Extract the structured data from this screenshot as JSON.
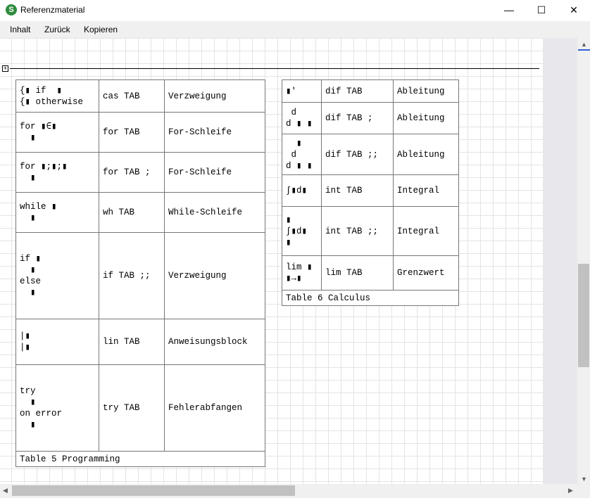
{
  "window": {
    "title": "Referenzmaterial",
    "icon": "app-s-icon",
    "minimize": "—",
    "maximize": "☐",
    "close": "✕"
  },
  "menu": [
    "Inhalt",
    "Zurück",
    "Kopieren"
  ],
  "table5": {
    "caption": "Table 5 Programming",
    "rows": [
      {
        "expr": [
          "{▮ if  ▮",
          "{▮ otherwise"
        ],
        "keys": "cas TAB",
        "desc": "Verzweigung"
      },
      {
        "expr": [
          "for ▮∈▮",
          "  ▮"
        ],
        "keys": "for TAB",
        "desc": "For-Schleife"
      },
      {
        "expr": [
          "for ▮;▮;▮",
          "  ▮"
        ],
        "keys": "for TAB ;",
        "desc": "For-Schleife"
      },
      {
        "expr": [
          "while ▮",
          "  ▮"
        ],
        "keys": "wh TAB",
        "desc": "While-Schleife"
      },
      {
        "expr": [
          "if ▮",
          "  ▮",
          "else",
          "  ▮"
        ],
        "keys": "if TAB ;;",
        "desc": "Verzweigung"
      },
      {
        "expr": [
          "|▮",
          "|▮"
        ],
        "keys": "lin TAB",
        "desc": "Anweisungsblock"
      },
      {
        "expr": [
          "try",
          "  ▮",
          "on error",
          "  ▮"
        ],
        "keys": "try TAB",
        "desc": "Fehlerabfangen"
      }
    ]
  },
  "table6": {
    "caption": "Table 6 Calculus",
    "rows": [
      {
        "expr": [
          "▮′"
        ],
        "keys": "dif TAB",
        "desc": "Ableitung"
      },
      {
        "expr": [
          " d",
          "d ▮ ▮"
        ],
        "keys": "dif TAB ;",
        "desc": "Ableitung"
      },
      {
        "expr": [
          "  ▮",
          " d ",
          "d ▮ ▮"
        ],
        "keys": "dif TAB ;;",
        "desc": "Ableitung"
      },
      {
        "expr": [
          "∫▮d▮"
        ],
        "keys": "int TAB",
        "desc": "Integral"
      },
      {
        "expr": [
          "▮",
          "∫▮d▮",
          "▮"
        ],
        "keys": "int TAB ;;",
        "desc": "Integral"
      },
      {
        "expr": [
          "lim ▮",
          "▮→▮"
        ],
        "keys": "lim TAB",
        "desc": "Grenzwert"
      }
    ]
  }
}
